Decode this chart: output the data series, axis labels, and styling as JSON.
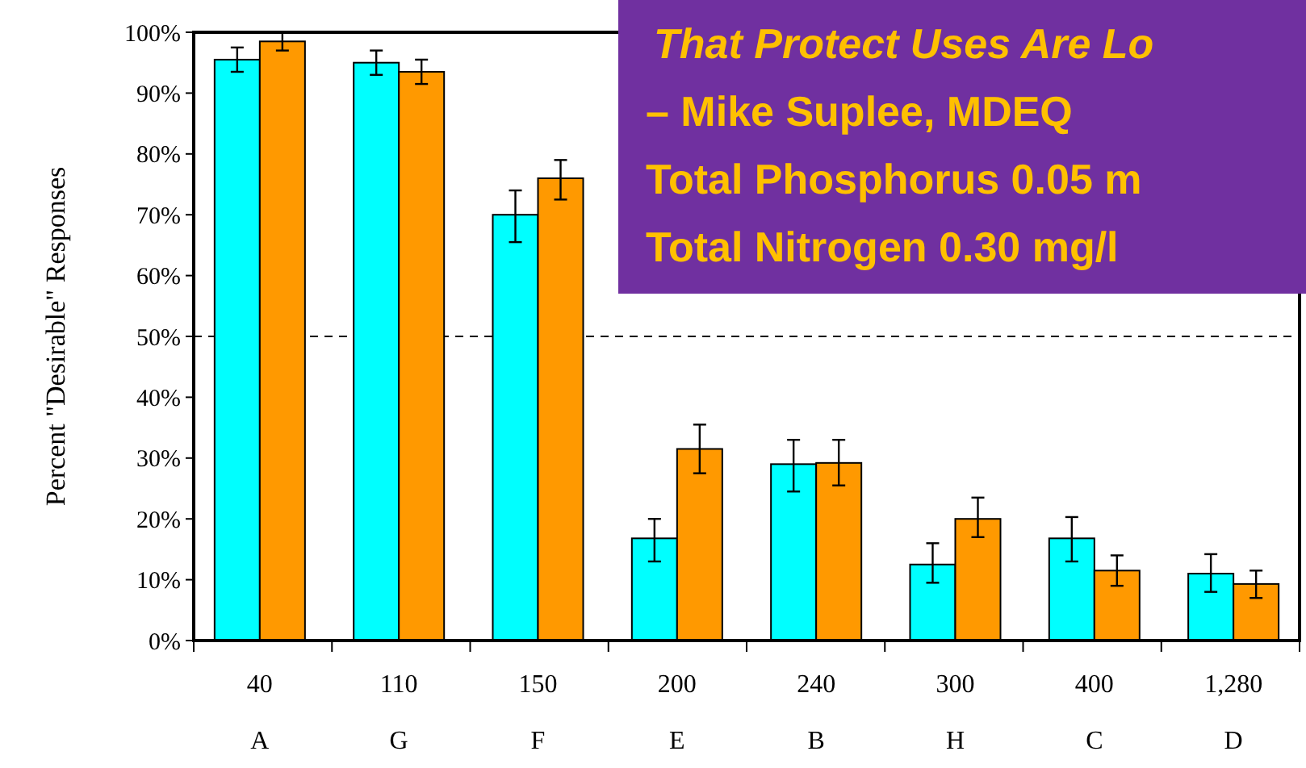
{
  "chart_data": {
    "type": "bar",
    "ylabel": "Percent \"Desirable\" Responses",
    "categories": [
      "40\nA",
      "110\nG",
      "150\nF",
      "200\nE",
      "240\nB",
      "300\nH",
      "400\nC",
      "1,280\nD"
    ],
    "series": [
      {
        "color": "#00ffff",
        "values": [
          95.5,
          95,
          70,
          16.8,
          29,
          12.5,
          16.8,
          11
        ],
        "errors": [
          [
            93.5,
            97.5
          ],
          [
            93,
            97
          ],
          [
            65.5,
            74
          ],
          [
            13,
            20
          ],
          [
            24.5,
            33
          ],
          [
            9.5,
            16
          ],
          [
            13,
            20.3
          ],
          [
            8,
            14.2
          ]
        ]
      },
      {
        "color": "#ff9900",
        "values": [
          98.5,
          93.5,
          76,
          31.5,
          29.2,
          20,
          11.5,
          9.3
        ],
        "errors": [
          [
            97,
            100
          ],
          [
            91.5,
            95.5
          ],
          [
            72.5,
            79
          ],
          [
            27.5,
            35.5
          ],
          [
            25.5,
            33
          ],
          [
            17,
            23.5
          ],
          [
            9,
            14
          ],
          [
            7,
            11.5
          ]
        ]
      }
    ],
    "ylim": [
      0,
      100
    ],
    "yticks": [
      {
        "value": 0,
        "label": "0%"
      },
      {
        "value": 10,
        "label": "10%"
      },
      {
        "value": 20,
        "label": "20%"
      },
      {
        "value": 30,
        "label": "30%"
      },
      {
        "value": 40,
        "label": "40%"
      },
      {
        "value": 50,
        "label": "50%"
      },
      {
        "value": 60,
        "label": "60%"
      },
      {
        "value": 70,
        "label": "70%"
      },
      {
        "value": 80,
        "label": "80%"
      },
      {
        "value": 90,
        "label": "90%"
      },
      {
        "value": 100,
        "label": "100%"
      }
    ],
    "ref_lines": [
      {
        "axis": "y",
        "value": 50,
        "color": "#000000",
        "line_style": "dashed"
      }
    ],
    "annotations": [
      "That Protect Uses Are Lo",
      "– Mike Suplee,  MDEQ",
      "Total Phosphorus 0.05 m",
      "Total Nitrogen 0.30 mg/l"
    ],
    "grid": false
  }
}
